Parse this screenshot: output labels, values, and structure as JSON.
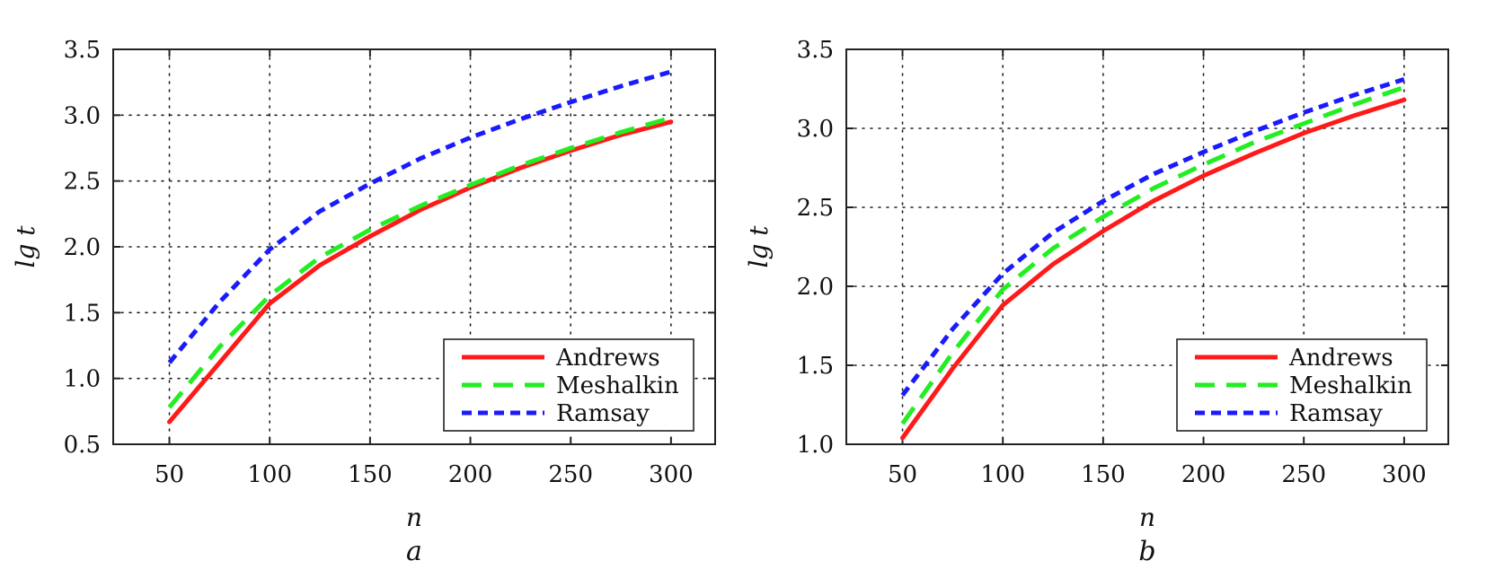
{
  "chart_data": [
    {
      "type": "line",
      "panel": "a",
      "title": "",
      "xlabel": "n",
      "ylabel": "lg t",
      "xlim": [
        22,
        322
      ],
      "ylim": [
        0.5,
        3.5
      ],
      "grid": true,
      "legend_position": "bottom-right",
      "xticks": [
        50,
        100,
        150,
        200,
        250,
        300
      ],
      "xtick_labels": [
        "50",
        "100",
        "150",
        "200",
        "250",
        "300"
      ],
      "yticks": [
        0.5,
        1.0,
        1.5,
        2.0,
        2.5,
        3.0,
        3.5
      ],
      "ytick_labels": [
        "0.5",
        "1.0",
        "1.5",
        "2.0",
        "2.5",
        "3.0",
        "3.5"
      ],
      "x": [
        50,
        75,
        100,
        125,
        150,
        175,
        200,
        225,
        250,
        275,
        300
      ],
      "series": [
        {
          "name": "Andrews",
          "color": "#ff1a1a",
          "style": "solid",
          "values": [
            0.67,
            1.12,
            1.57,
            1.86,
            2.08,
            2.28,
            2.45,
            2.6,
            2.73,
            2.85,
            2.95
          ]
        },
        {
          "name": "Meshalkin",
          "color": "#22ee22",
          "style": "dashed",
          "values": [
            0.78,
            1.24,
            1.63,
            1.92,
            2.13,
            2.31,
            2.47,
            2.62,
            2.75,
            2.87,
            2.98
          ]
        },
        {
          "name": "Ramsay",
          "color": "#1a1aff",
          "style": "dotted",
          "values": [
            1.12,
            1.58,
            1.98,
            2.27,
            2.48,
            2.67,
            2.83,
            2.97,
            3.1,
            3.22,
            3.33
          ]
        }
      ]
    },
    {
      "type": "line",
      "panel": "b",
      "title": "",
      "xlabel": "n",
      "ylabel": "lg t",
      "xlim": [
        22,
        322
      ],
      "ylim": [
        1.0,
        3.5
      ],
      "grid": true,
      "legend_position": "bottom-right",
      "xticks": [
        50,
        100,
        150,
        200,
        250,
        300
      ],
      "xtick_labels": [
        "50",
        "100",
        "150",
        "200",
        "250",
        "300"
      ],
      "yticks": [
        1.0,
        1.5,
        2.0,
        2.5,
        3.0,
        3.5
      ],
      "ytick_labels": [
        "1.0",
        "1.5",
        "2.0",
        "2.5",
        "3.0",
        "3.5"
      ],
      "x": [
        50,
        75,
        100,
        125,
        150,
        175,
        200,
        225,
        250,
        275,
        300
      ],
      "series": [
        {
          "name": "Andrews",
          "color": "#ff1a1a",
          "style": "solid",
          "values": [
            1.04,
            1.48,
            1.88,
            2.14,
            2.35,
            2.54,
            2.7,
            2.84,
            2.97,
            3.08,
            3.18
          ]
        },
        {
          "name": "Meshalkin",
          "color": "#22ee22",
          "style": "dashed",
          "values": [
            1.13,
            1.58,
            1.98,
            2.24,
            2.44,
            2.62,
            2.77,
            2.91,
            3.03,
            3.15,
            3.26
          ]
        },
        {
          "name": "Ramsay",
          "color": "#1a1aff",
          "style": "dotted",
          "values": [
            1.31,
            1.73,
            2.08,
            2.34,
            2.54,
            2.71,
            2.85,
            2.98,
            3.1,
            3.21,
            3.31
          ]
        }
      ]
    }
  ]
}
